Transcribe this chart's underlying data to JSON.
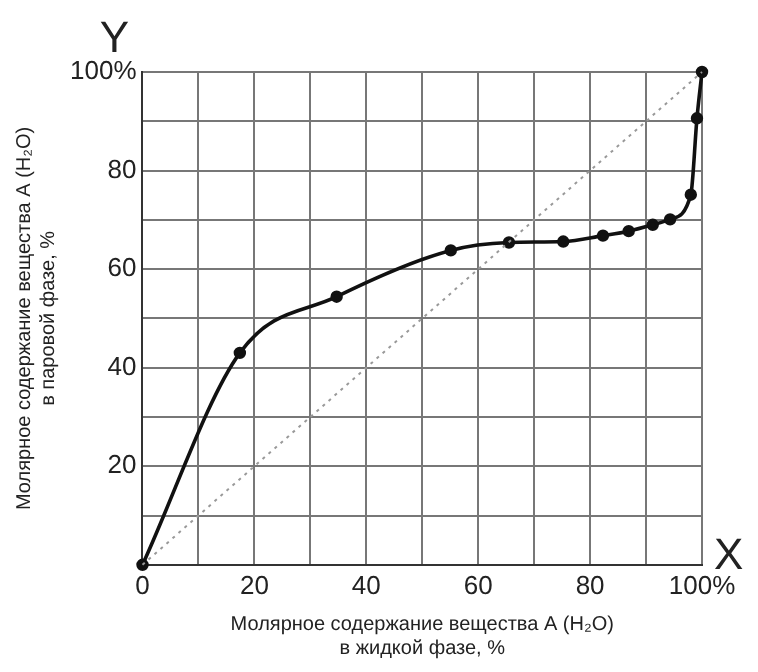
{
  "chart_data": {
    "type": "line",
    "xlabel": "Молярное содержание вещества А (H₂O)\nв жидкой фазе, %",
    "ylabel": "Молярное содержание вещества А (H₂O)\nв паровой фазе, %",
    "annotations": [
      "Y",
      "X"
    ],
    "xlim": [
      0,
      100
    ],
    "ylim": [
      0,
      100
    ],
    "xticks": [
      {
        "value": 0,
        "label": "0"
      },
      {
        "value": 10,
        "label": null
      },
      20,
      {
        "value": 30,
        "label": null
      },
      40,
      {
        "value": 50,
        "label": null
      },
      60,
      {
        "value": 70,
        "label": null
      },
      80,
      {
        "value": 90,
        "label": null
      },
      {
        "value": 100,
        "label": "100%"
      }
    ],
    "yticks": [
      {
        "value": 0,
        "label": null
      },
      {
        "value": 10,
        "label": null
      },
      20,
      {
        "value": 30,
        "label": null
      },
      40,
      {
        "value": 50,
        "label": null
      },
      60,
      {
        "value": 70,
        "label": null
      },
      80,
      {
        "value": 90,
        "label": null
      },
      {
        "value": 100,
        "label": "100%"
      }
    ],
    "grid": true,
    "legend": false,
    "series": [
      {
        "type": "line",
        "color": "#999999",
        "line_style": "dotted",
        "marker": "none",
        "x": [
          0,
          100
        ],
        "values": [
          0,
          100
        ]
      },
      {
        "type": "line",
        "color": "#111111",
        "line_style": "solid",
        "marker": "circle",
        "x": [
          0,
          17.4,
          34.7,
          55.1,
          65.5,
          75.2,
          82.3,
          86.9,
          91.2,
          94.3,
          98,
          99.1,
          100
        ],
        "values": [
          0,
          43,
          54.4,
          63.8,
          65.4,
          65.6,
          66.8,
          67.7,
          69,
          70.1,
          75.1,
          90.6,
          100
        ]
      }
    ]
  }
}
